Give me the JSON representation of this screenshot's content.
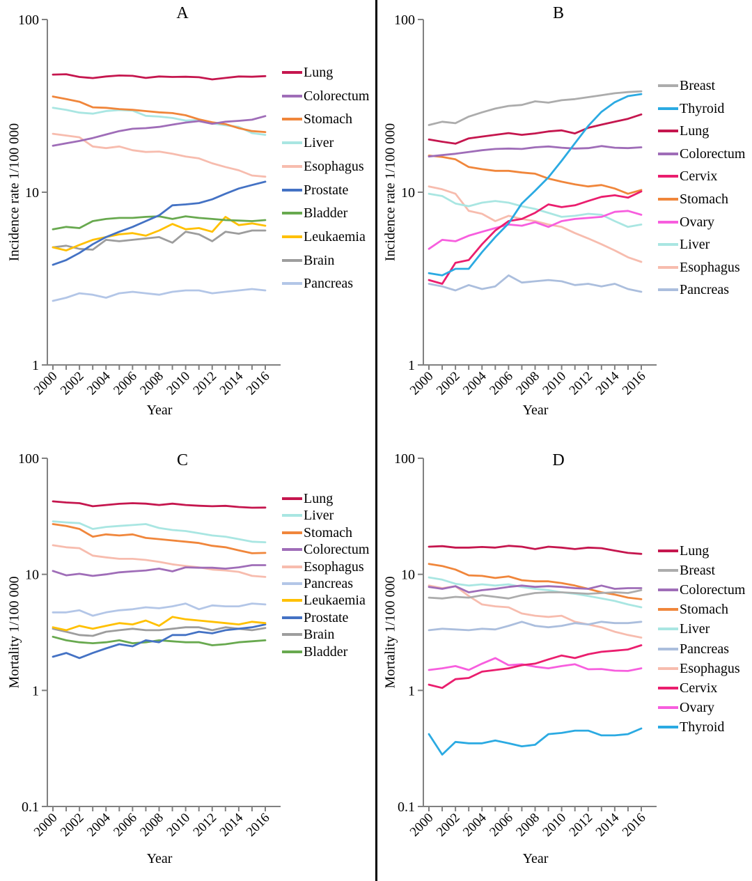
{
  "chart_data": [
    {
      "type": "line",
      "panel": "A",
      "title": "A",
      "xlabel": "Year",
      "ylabel": "Incidence rate 1/100 000",
      "yscale": "log",
      "ylim": [
        1,
        100
      ],
      "yticks": [
        100,
        10,
        1
      ],
      "grid": false,
      "legend_position": "right",
      "x": [
        2000,
        2001,
        2002,
        2003,
        2004,
        2005,
        2006,
        2007,
        2008,
        2009,
        2010,
        2011,
        2012,
        2013,
        2014,
        2015,
        2016
      ],
      "series": [
        {
          "name": "Lung",
          "color": "#C5164E",
          "values": [
            48,
            48.2,
            46.5,
            45.8,
            46.8,
            47.4,
            47.2,
            45.9,
            46.8,
            46.5,
            46.6,
            46.3,
            45.0,
            45.9,
            46.8,
            46.6,
            47.0
          ]
        },
        {
          "name": "Colorectum",
          "color": "#9F6DB8",
          "values": [
            18.6,
            19.2,
            19.8,
            20.6,
            21.6,
            22.6,
            23.3,
            23.5,
            23.9,
            24.6,
            25.3,
            25.8,
            24.9,
            25.6,
            25.9,
            26.3,
            27.6
          ]
        },
        {
          "name": "Stomach",
          "color": "#F0863B",
          "values": [
            35.8,
            34.6,
            33.4,
            31.0,
            30.8,
            30.3,
            30.0,
            29.5,
            29.0,
            28.7,
            27.9,
            26.4,
            25.4,
            24.8,
            23.5,
            22.6,
            22.3
          ]
        },
        {
          "name": "Liver",
          "color": "#A9E6E2",
          "values": [
            30.8,
            30.0,
            28.9,
            28.5,
            29.5,
            29.9,
            29.7,
            27.7,
            27.4,
            26.9,
            26.0,
            26.2,
            25.0,
            24.4,
            23.9,
            22.0,
            21.5
          ]
        },
        {
          "name": "Esophagus",
          "color": "#F7BCAE",
          "values": [
            21.8,
            21.3,
            20.8,
            18.4,
            18.0,
            18.4,
            17.5,
            17.1,
            17.2,
            16.7,
            16.1,
            15.7,
            14.7,
            14.0,
            13.4,
            12.5,
            12.3
          ]
        },
        {
          "name": "Prostate",
          "color": "#4472C4",
          "values": [
            3.8,
            4.05,
            4.45,
            5.0,
            5.5,
            5.9,
            6.3,
            6.8,
            7.35,
            8.4,
            8.5,
            8.65,
            9.1,
            9.8,
            10.5,
            11.0,
            11.5
          ]
        },
        {
          "name": "Bladder",
          "color": "#68A94F",
          "values": [
            6.1,
            6.3,
            6.2,
            6.8,
            7.0,
            7.1,
            7.1,
            7.2,
            7.25,
            7.0,
            7.25,
            7.1,
            7.0,
            6.9,
            6.85,
            6.8,
            6.9
          ]
        },
        {
          "name": "Leukaemia",
          "color": "#FFC000",
          "values": [
            4.8,
            4.6,
            4.95,
            5.3,
            5.5,
            5.7,
            5.8,
            5.6,
            6.0,
            6.55,
            6.1,
            6.2,
            5.9,
            7.2,
            6.45,
            6.6,
            6.4
          ]
        },
        {
          "name": "Brain",
          "color": "#9D9D9D",
          "values": [
            4.8,
            4.9,
            4.7,
            4.65,
            5.3,
            5.2,
            5.3,
            5.4,
            5.5,
            5.1,
            5.9,
            5.7,
            5.2,
            5.9,
            5.75,
            6.0,
            6.0
          ]
        },
        {
          "name": "Pancreas",
          "color": "#B3C6E7",
          "values": [
            2.35,
            2.45,
            2.6,
            2.55,
            2.45,
            2.6,
            2.65,
            2.6,
            2.55,
            2.65,
            2.7,
            2.7,
            2.6,
            2.65,
            2.7,
            2.75,
            2.7
          ]
        }
      ]
    },
    {
      "type": "line",
      "panel": "B",
      "title": "B",
      "xlabel": "Year",
      "ylabel": "Incidence rate 1/100 000",
      "yscale": "log",
      "ylim": [
        1,
        100
      ],
      "yticks": [
        100,
        10,
        1
      ],
      "grid": false,
      "legend_position": "right",
      "x": [
        2000,
        2001,
        2002,
        2003,
        2004,
        2005,
        2006,
        2007,
        2008,
        2009,
        2010,
        2011,
        2012,
        2013,
        2014,
        2015,
        2016
      ],
      "series": [
        {
          "name": "Breast",
          "color": "#ACACAC",
          "values": [
            24.5,
            25.6,
            25.1,
            27.4,
            29.0,
            30.5,
            31.6,
            32.0,
            33.6,
            33.0,
            34.1,
            34.6,
            35.5,
            36.4,
            37.4,
            38.0,
            38.4
          ]
        },
        {
          "name": "Thyroid",
          "color": "#2BAAE2",
          "values": [
            3.4,
            3.3,
            3.6,
            3.6,
            4.5,
            5.5,
            6.6,
            8.6,
            10.2,
            12.2,
            15.2,
            19.2,
            24.2,
            29.2,
            33.2,
            36.0,
            37.0
          ]
        },
        {
          "name": "Lung",
          "color": "#C5164E",
          "values": [
            20.2,
            19.6,
            19.1,
            20.5,
            21.0,
            21.5,
            22.0,
            21.5,
            21.9,
            22.5,
            22.8,
            21.9,
            23.6,
            24.6,
            25.6,
            26.6,
            28.2
          ]
        },
        {
          "name": "Colorectum",
          "color": "#9F6DB8",
          "values": [
            16.1,
            16.4,
            16.7,
            17.1,
            17.5,
            17.8,
            17.9,
            17.8,
            18.2,
            18.4,
            18.1,
            17.9,
            18.0,
            18.5,
            18.1,
            18.0,
            18.2
          ]
        },
        {
          "name": "Cervix",
          "color": "#EA1E6E",
          "values": [
            3.1,
            2.95,
            3.9,
            4.05,
            5.0,
            6.0,
            6.8,
            7.0,
            7.6,
            8.5,
            8.2,
            8.4,
            8.9,
            9.4,
            9.6,
            9.3,
            10.1
          ]
        },
        {
          "name": "Stomach",
          "color": "#F0863B",
          "values": [
            16.3,
            16.0,
            15.5,
            14.0,
            13.6,
            13.3,
            13.3,
            13.0,
            12.8,
            12.0,
            11.5,
            11.1,
            10.8,
            11.0,
            10.5,
            9.8,
            10.3
          ]
        },
        {
          "name": "Ovary",
          "color": "#F75EDE",
          "values": [
            4.7,
            5.3,
            5.2,
            5.6,
            5.9,
            6.2,
            6.5,
            6.4,
            6.7,
            6.3,
            6.8,
            7.0,
            7.1,
            7.2,
            7.7,
            7.8,
            7.4
          ]
        },
        {
          "name": "Liver",
          "color": "#A9E6E2",
          "values": [
            9.8,
            9.5,
            8.6,
            8.3,
            8.7,
            8.9,
            8.7,
            8.3,
            8.0,
            7.6,
            7.2,
            7.3,
            7.5,
            7.4,
            6.8,
            6.3,
            6.5
          ]
        },
        {
          "name": "Esophagus",
          "color": "#F7BCAE",
          "values": [
            10.8,
            10.4,
            9.8,
            7.8,
            7.5,
            6.8,
            7.3,
            7.0,
            6.8,
            6.5,
            6.3,
            5.8,
            5.4,
            5.0,
            4.6,
            4.2,
            3.95
          ]
        },
        {
          "name": "Pancreas",
          "color": "#ABBEDD",
          "values": [
            2.95,
            2.85,
            2.7,
            2.9,
            2.75,
            2.85,
            3.3,
            3.0,
            3.05,
            3.1,
            3.05,
            2.9,
            2.95,
            2.85,
            2.95,
            2.75,
            2.65
          ]
        }
      ]
    },
    {
      "type": "line",
      "panel": "C",
      "title": "C",
      "xlabel": "Year",
      "ylabel": "Mortality 1/100 000",
      "yscale": "log",
      "ylim": [
        0.1,
        100
      ],
      "yticks": [
        100,
        10,
        1,
        0.1
      ],
      "grid": false,
      "legend_position": "right",
      "x": [
        2000,
        2001,
        2002,
        2003,
        2004,
        2005,
        2006,
        2007,
        2008,
        2009,
        2010,
        2011,
        2012,
        2013,
        2014,
        2015,
        2016
      ],
      "series": [
        {
          "name": "Lung",
          "color": "#C5164E",
          "values": [
            42.5,
            41.6,
            41.0,
            38.6,
            39.6,
            40.5,
            41.0,
            40.6,
            39.6,
            40.6,
            39.6,
            39.0,
            38.6,
            38.9,
            38.0,
            37.5,
            37.6
          ]
        },
        {
          "name": "Liver",
          "color": "#A9E6E2",
          "values": [
            28.6,
            28.0,
            27.6,
            24.6,
            25.6,
            26.1,
            26.6,
            27.1,
            25.1,
            24.1,
            23.6,
            22.6,
            21.6,
            21.1,
            20.1,
            19.1,
            18.9
          ]
        },
        {
          "name": "Stomach",
          "color": "#F0863B",
          "values": [
            27.1,
            26.1,
            24.6,
            21.1,
            22.1,
            21.6,
            22.1,
            20.6,
            20.1,
            19.6,
            19.1,
            18.6,
            17.6,
            17.1,
            16.1,
            15.2,
            15.3
          ]
        },
        {
          "name": "Colorectum",
          "color": "#9F6DB8",
          "values": [
            10.7,
            9.8,
            10.1,
            9.7,
            10.0,
            10.4,
            10.6,
            10.8,
            11.2,
            10.6,
            11.5,
            11.4,
            11.4,
            11.2,
            11.5,
            12.0,
            12.0
          ]
        },
        {
          "name": "Esophagus",
          "color": "#F7BCAE",
          "values": [
            17.8,
            17.1,
            16.8,
            14.5,
            14.0,
            13.6,
            13.6,
            13.3,
            12.8,
            12.2,
            11.8,
            11.5,
            11.0,
            10.8,
            10.5,
            9.7,
            9.5
          ]
        },
        {
          "name": "Pancreas",
          "color": "#B3C6E7",
          "values": [
            4.7,
            4.7,
            4.9,
            4.4,
            4.7,
            4.9,
            5.0,
            5.2,
            5.1,
            5.3,
            5.6,
            5.0,
            5.4,
            5.3,
            5.3,
            5.6,
            5.5
          ]
        },
        {
          "name": "Leukaemia",
          "color": "#FFC000",
          "values": [
            3.5,
            3.3,
            3.6,
            3.4,
            3.6,
            3.8,
            3.7,
            4.0,
            3.6,
            4.3,
            4.1,
            4.0,
            3.9,
            3.8,
            3.7,
            3.9,
            3.8
          ]
        },
        {
          "name": "Prostate",
          "color": "#4472C4",
          "values": [
            1.95,
            2.1,
            1.9,
            2.1,
            2.3,
            2.5,
            2.4,
            2.7,
            2.6,
            3.0,
            3.0,
            3.2,
            3.1,
            3.3,
            3.4,
            3.5,
            3.7
          ]
        },
        {
          "name": "Brain",
          "color": "#9D9D9D",
          "values": [
            3.4,
            3.2,
            3.0,
            2.95,
            3.2,
            3.3,
            3.4,
            3.3,
            3.3,
            3.4,
            3.5,
            3.5,
            3.3,
            3.5,
            3.4,
            3.3,
            3.45
          ]
        },
        {
          "name": "Bladder",
          "color": "#68A94F",
          "values": [
            2.9,
            2.7,
            2.6,
            2.55,
            2.6,
            2.7,
            2.55,
            2.6,
            2.7,
            2.65,
            2.6,
            2.6,
            2.45,
            2.5,
            2.6,
            2.65,
            2.7
          ]
        }
      ]
    },
    {
      "type": "line",
      "panel": "D",
      "title": "D",
      "xlabel": "Year",
      "ylabel": "Mortality 1/100 000",
      "yscale": "log",
      "ylim": [
        0.1,
        100
      ],
      "yticks": [
        100,
        10,
        1,
        0.1
      ],
      "grid": false,
      "legend_position": "right",
      "x": [
        2000,
        2001,
        2002,
        2003,
        2004,
        2005,
        2006,
        2007,
        2008,
        2009,
        2010,
        2011,
        2012,
        2013,
        2014,
        2015,
        2016
      ],
      "series": [
        {
          "name": "Lung",
          "color": "#C5164E",
          "values": [
            17.3,
            17.5,
            17.0,
            17.0,
            17.2,
            17.0,
            17.6,
            17.3,
            16.5,
            17.3,
            17.0,
            16.5,
            17.0,
            16.8,
            16.0,
            15.3,
            15.0
          ]
        },
        {
          "name": "Breast",
          "color": "#ACACAC",
          "values": [
            6.3,
            6.2,
            6.4,
            6.3,
            6.6,
            6.4,
            6.2,
            6.6,
            6.9,
            7.0,
            7.0,
            6.9,
            6.8,
            6.9,
            7.0,
            6.9,
            7.3
          ]
        },
        {
          "name": "Colorectum",
          "color": "#9F6DB8",
          "values": [
            7.8,
            7.5,
            7.9,
            7.0,
            7.3,
            7.5,
            7.8,
            8.0,
            7.8,
            7.9,
            7.8,
            7.6,
            7.5,
            8.0,
            7.5,
            7.6,
            7.6
          ]
        },
        {
          "name": "Stomach",
          "color": "#F0863B",
          "values": [
            12.3,
            11.8,
            11.0,
            9.8,
            9.7,
            9.3,
            9.6,
            8.9,
            8.7,
            8.7,
            8.4,
            8.0,
            7.5,
            7.0,
            6.7,
            6.3,
            6.1
          ]
        },
        {
          "name": "Liver",
          "color": "#A9E6E2",
          "values": [
            9.4,
            9.0,
            8.3,
            8.0,
            8.2,
            8.0,
            8.2,
            7.8,
            7.5,
            7.3,
            7.0,
            6.8,
            6.5,
            6.2,
            5.9,
            5.5,
            5.2
          ]
        },
        {
          "name": "Pancreas",
          "color": "#ABBEDD",
          "values": [
            3.3,
            3.4,
            3.35,
            3.3,
            3.4,
            3.35,
            3.6,
            3.9,
            3.6,
            3.5,
            3.6,
            3.8,
            3.7,
            3.9,
            3.8,
            3.8,
            3.9
          ]
        },
        {
          "name": "Esophagus",
          "color": "#F7BCAE",
          "values": [
            8.0,
            7.6,
            7.9,
            6.5,
            5.5,
            5.3,
            5.2,
            4.6,
            4.4,
            4.3,
            4.4,
            3.9,
            3.7,
            3.5,
            3.2,
            3.0,
            2.85
          ]
        },
        {
          "name": "Cervix",
          "color": "#EA1E6E",
          "values": [
            1.12,
            1.05,
            1.25,
            1.28,
            1.45,
            1.5,
            1.55,
            1.65,
            1.7,
            1.85,
            2.0,
            1.9,
            2.05,
            2.15,
            2.2,
            2.25,
            2.45
          ]
        },
        {
          "name": "Ovary",
          "color": "#F75EDE",
          "values": [
            1.5,
            1.55,
            1.62,
            1.5,
            1.7,
            1.9,
            1.65,
            1.68,
            1.6,
            1.55,
            1.62,
            1.68,
            1.52,
            1.53,
            1.48,
            1.47,
            1.55
          ]
        },
        {
          "name": "Thyroid",
          "color": "#2BAAE2",
          "values": [
            0.42,
            0.28,
            0.36,
            0.35,
            0.35,
            0.37,
            0.35,
            0.33,
            0.34,
            0.42,
            0.43,
            0.45,
            0.45,
            0.41,
            0.41,
            0.42,
            0.47
          ]
        }
      ]
    }
  ]
}
